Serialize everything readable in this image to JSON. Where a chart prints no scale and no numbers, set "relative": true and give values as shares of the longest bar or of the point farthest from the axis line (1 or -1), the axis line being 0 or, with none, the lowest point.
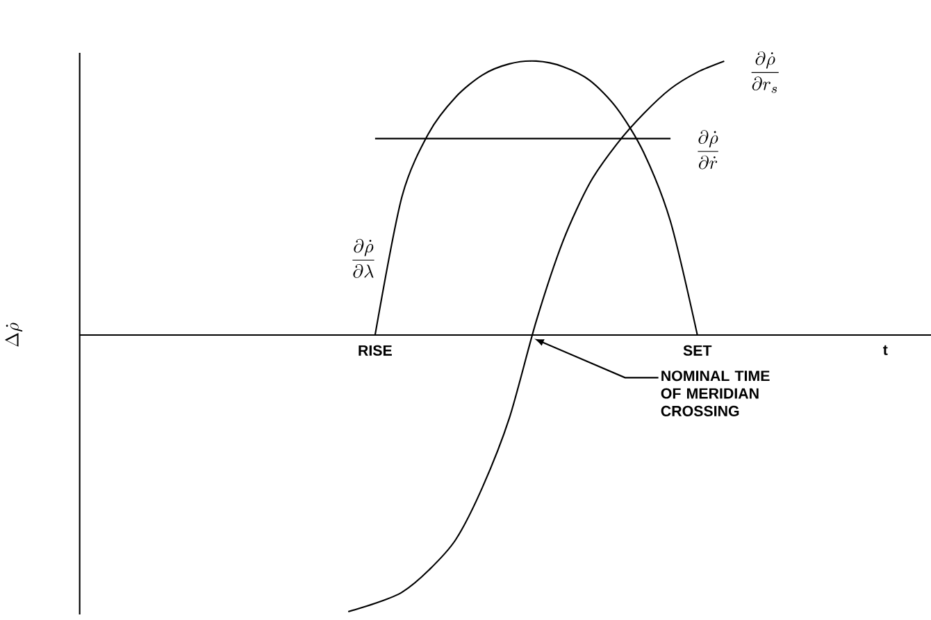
{
  "chart_data": {
    "type": "line",
    "relative": true,
    "ylabel": "\\Delta\\dot{\\rho}",
    "categories": [
      null,
      null,
      null,
      null,
      null,
      null,
      null,
      null,
      null,
      null,
      null,
      "RISE",
      null,
      null,
      null,
      null,
      null,
      null,
      null,
      null,
      null,
      null,
      null,
      "SET",
      null,
      null,
      null,
      null,
      null,
      null,
      "t",
      null
    ],
    "series": [
      {
        "name": "\\frac{\\partial\\dot{\\rho}}{\\partial\\lambda}",
        "color": "#000000",
        "values": [
          null,
          null,
          null,
          null,
          null,
          null,
          null,
          null,
          null,
          null,
          null,
          0,
          0.5,
          0.73,
          0.86,
          0.94,
          0.98,
          0.99,
          0.97,
          0.92,
          0.82,
          0.66,
          0.41,
          0,
          null,
          null,
          null,
          null,
          null,
          null,
          null,
          null
        ]
      },
      {
        "name": "\\frac{\\partial\\dot{\\rho}}{\\partial r_s}",
        "color": "#000000",
        "values": [
          null,
          null,
          null,
          null,
          null,
          null,
          null,
          null,
          null,
          null,
          -1.0,
          -0.97,
          -0.93,
          -0.85,
          -0.74,
          -0.55,
          -0.3,
          0.05,
          0.34,
          0.55,
          0.69,
          0.8,
          0.89,
          0.95,
          0.99,
          null,
          null,
          null,
          null,
          null,
          null,
          null
        ]
      },
      {
        "name": "\\frac{\\partial\\dot{\\rho}}{\\partial\\dot{r}}",
        "color": "#000000",
        "values": [
          null,
          null,
          null,
          null,
          null,
          null,
          null,
          null,
          null,
          null,
          null,
          0.71,
          0.71,
          0.71,
          0.71,
          0.71,
          0.71,
          0.71,
          0.71,
          0.71,
          0.71,
          0.71,
          0.71,
          null,
          null,
          null,
          null,
          null,
          null,
          null,
          null,
          null
        ]
      }
    ],
    "annotations": [
      "NOMINAL TIME OF MERIDIAN CROSSING"
    ],
    "legend": false,
    "marker": "none",
    "line_style": "solid",
    "grid": false
  }
}
